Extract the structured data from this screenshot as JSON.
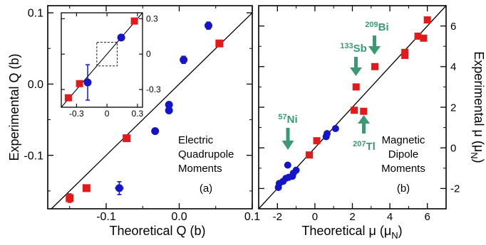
{
  "chart_data": [
    {
      "type": "scatter",
      "title": "",
      "xlabel": "Theoretical Q (b)",
      "ylabel": "Experimental Q (b)",
      "xlim": [
        -0.18,
        0.1
      ],
      "ylim": [
        -0.175,
        0.11
      ],
      "xticks": [
        -0.1,
        0.0,
        0.1
      ],
      "yticks": [
        -0.1,
        0.0,
        0.1
      ],
      "xtick_labels": [
        "-0.1",
        "0.0",
        "0.1"
      ],
      "ytick_labels": [
        "-0.1",
        "0.0",
        "0.1"
      ],
      "diagonal_line": true,
      "annotation_lines": [
        "Electric",
        "Quadrupole",
        "Moments"
      ],
      "panel_label": "(a)",
      "colors": {
        "square": "#e31a1c",
        "circle": "#1515c8",
        "line": "#000000"
      },
      "series": [
        {
          "marker": "square",
          "points": [
            {
              "x": -0.15,
              "y": -0.16,
              "yerr": 0.006
            },
            {
              "x": -0.127,
              "y": -0.146
            },
            {
              "x": -0.072,
              "y": -0.076
            },
            {
              "x": 0.055,
              "y": 0.057
            }
          ]
        },
        {
          "marker": "circle",
          "points": [
            {
              "x": -0.082,
              "y": -0.146,
              "xerr": 0.006,
              "yerr": 0.009
            },
            {
              "x": -0.033,
              "y": -0.066
            },
            {
              "x": -0.014,
              "y": -0.037
            },
            {
              "x": -0.014,
              "y": -0.029
            },
            {
              "x": 0.006,
              "y": 0.034,
              "yerr": 0.005
            },
            {
              "x": 0.04,
              "y": 0.082,
              "yerr": 0.005
            }
          ]
        }
      ],
      "inset": {
        "xlim": [
          -0.45,
          0.35
        ],
        "ylim": [
          -0.45,
          0.35
        ],
        "xticks": [
          -0.3,
          0.0,
          0.3
        ],
        "yticks": [
          -0.3,
          0.0,
          0.3
        ],
        "xtick_labels": [
          "-0.3",
          "0",
          "0.3"
        ],
        "ytick_labels": [
          "-0.3",
          "0",
          "0.3"
        ],
        "dashed_box": {
          "x": [
            -0.1,
            0.1
          ],
          "y": [
            -0.1,
            0.1
          ]
        },
        "series": [
          {
            "marker": "square",
            "points": [
              {
                "x": -0.38,
                "y": -0.37
              },
              {
                "x": -0.27,
                "y": -0.25
              },
              {
                "x": 0.27,
                "y": 0.28
              }
            ]
          },
          {
            "marker": "circle",
            "points": [
              {
                "x": -0.19,
                "y": -0.24,
                "yerr": 0.15
              },
              {
                "x": 0.14,
                "y": 0.14
              }
            ]
          }
        ]
      }
    },
    {
      "type": "scatter",
      "title": "",
      "xlabel": "Theoretical μ (μ_N)",
      "ylabel": "Experimental μ (μ_N)",
      "xlim": [
        -3,
        7
      ],
      "ylim": [
        -3,
        7
      ],
      "xticks": [
        -2,
        0,
        2,
        4,
        6
      ],
      "yticks": [
        -2,
        0,
        2,
        4,
        6
      ],
      "xtick_labels": [
        "-2",
        "0",
        "2",
        "4",
        "6"
      ],
      "ytick_labels": [
        "-2",
        "0",
        "2",
        "4",
        "6"
      ],
      "diagonal_line": true,
      "annotation_lines": [
        "Magnetic",
        "Dipole",
        "Moments"
      ],
      "panel_label": "(b)",
      "colors": {
        "square": "#e31a1c",
        "circle": "#1515c8",
        "line": "#000000",
        "annotation": "#3a9a74"
      },
      "arrow_labels": [
        {
          "mass": "209",
          "element": "Bi",
          "text": "209Bi"
        },
        {
          "mass": "133",
          "element": "Sb",
          "text": "133Sb"
        },
        {
          "mass": "57",
          "element": "Ni",
          "text": "57Ni"
        },
        {
          "mass": "207",
          "element": "Tl",
          "text": "207Tl"
        }
      ],
      "series": [
        {
          "marker": "square",
          "points": [
            {
              "x": -0.3,
              "y": -0.35
            },
            {
              "x": 0.1,
              "y": 0.35
            },
            {
              "x": 2.1,
              "y": 1.85
            },
            {
              "x": 2.6,
              "y": 1.8
            },
            {
              "x": 2.2,
              "y": 3.0
            },
            {
              "x": 3.2,
              "y": 4.0
            },
            {
              "x": 4.8,
              "y": 4.7
            },
            {
              "x": 4.8,
              "y": 4.55
            },
            {
              "x": 5.5,
              "y": 5.5
            },
            {
              "x": 5.8,
              "y": 5.4
            },
            {
              "x": 6.0,
              "y": 6.3
            }
          ]
        },
        {
          "marker": "circle",
          "points": [
            {
              "x": -1.95,
              "y": -1.95
            },
            {
              "x": -1.9,
              "y": -1.75
            },
            {
              "x": -1.7,
              "y": -1.65
            },
            {
              "x": -1.55,
              "y": -1.5
            },
            {
              "x": -1.4,
              "y": -1.45
            },
            {
              "x": -1.2,
              "y": -1.4
            },
            {
              "x": -1.15,
              "y": -1.25
            },
            {
              "x": -1.0,
              "y": -1.1
            },
            {
              "x": -1.45,
              "y": -0.85
            },
            {
              "x": 0.6,
              "y": 0.55
            },
            {
              "x": 0.65,
              "y": 0.7
            },
            {
              "x": 1.1,
              "y": 0.95
            }
          ]
        }
      ]
    }
  ]
}
